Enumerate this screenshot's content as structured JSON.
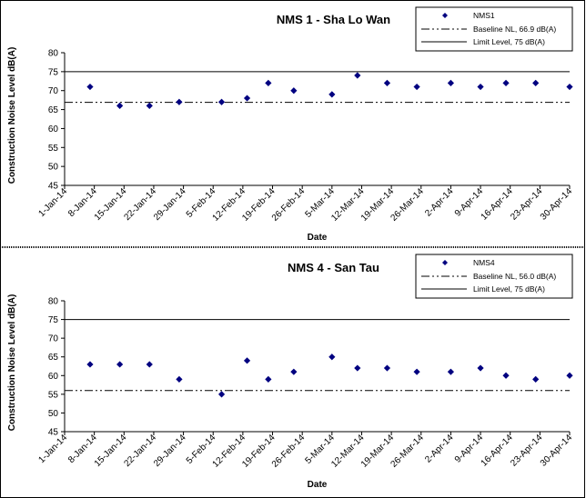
{
  "chart_data": [
    {
      "type": "scatter",
      "title": "NMS 1 - Sha Lo Wan",
      "xlabel": "Date",
      "ylabel": "Construction Noise Level  dB(A)",
      "ylim": [
        45,
        80
      ],
      "yticks": [
        "45",
        "50",
        "55",
        "60",
        "65",
        "70",
        "75",
        "80"
      ],
      "xtick_labels": [
        "1-Jan-14",
        "8-Jan-14",
        "15-Jan-14",
        "22-Jan-14",
        "29-Jan-14",
        "5-Feb-14",
        "12-Feb-14",
        "19-Feb-14",
        "26-Feb-14",
        "5-Mar-14",
        "12-Mar-14",
        "19-Mar-14",
        "26-Mar-14",
        "2-Apr-14",
        "9-Apr-14",
        "16-Apr-14",
        "23-Apr-14",
        "30-Apr-14"
      ],
      "x_range": [
        "2014-01-01",
        "2014-04-30"
      ],
      "grid": false,
      "legend_position": "top-right",
      "series": [
        {
          "name": "NMS1",
          "color": "#000080",
          "marker": "diamond",
          "x": [
            "2014-01-07",
            "2014-01-14",
            "2014-01-21",
            "2014-01-28",
            "2014-02-07",
            "2014-02-13",
            "2014-02-18",
            "2014-02-24",
            "2014-03-05",
            "2014-03-11",
            "2014-03-18",
            "2014-03-25",
            "2014-04-02",
            "2014-04-09",
            "2014-04-15",
            "2014-04-22",
            "2014-04-30"
          ],
          "y": [
            71,
            66,
            66,
            67,
            67,
            68,
            72,
            70,
            69,
            74,
            72,
            71,
            72,
            71,
            72,
            72,
            71
          ]
        }
      ],
      "reference_lines": [
        {
          "name": "Baseline NL, 66.9 dB(A)",
          "y": 66.9,
          "style": "dash-dot-dot"
        },
        {
          "name": "Limit Level, 75 dB(A)",
          "y": 75,
          "style": "solid"
        }
      ]
    },
    {
      "type": "scatter",
      "title": "NMS 4 - San Tau",
      "xlabel": "Date",
      "ylabel": "Construction Noise Level  dB(A)",
      "ylim": [
        45,
        80
      ],
      "yticks": [
        "45",
        "50",
        "55",
        "60",
        "65",
        "70",
        "75",
        "80"
      ],
      "xtick_labels": [
        "1-Jan-14",
        "8-Jan-14",
        "15-Jan-14",
        "22-Jan-14",
        "29-Jan-14",
        "5-Feb-14",
        "12-Feb-14",
        "19-Feb-14",
        "26-Feb-14",
        "5-Mar-14",
        "12-Mar-14",
        "19-Mar-14",
        "26-Mar-14",
        "2-Apr-14",
        "9-Apr-14",
        "16-Apr-14",
        "23-Apr-14",
        "30-Apr-14"
      ],
      "x_range": [
        "2014-01-01",
        "2014-04-30"
      ],
      "grid": false,
      "legend_position": "top-right",
      "series": [
        {
          "name": "NMS4",
          "color": "#000080",
          "marker": "diamond",
          "x": [
            "2014-01-07",
            "2014-01-14",
            "2014-01-21",
            "2014-01-28",
            "2014-02-07",
            "2014-02-13",
            "2014-02-18",
            "2014-02-24",
            "2014-03-05",
            "2014-03-11",
            "2014-03-18",
            "2014-03-25",
            "2014-04-02",
            "2014-04-09",
            "2014-04-15",
            "2014-04-22",
            "2014-04-30"
          ],
          "y": [
            63,
            63,
            63,
            59,
            55,
            64,
            59,
            61,
            65,
            62,
            62,
            61,
            61,
            62,
            60,
            59,
            60
          ]
        }
      ],
      "reference_lines": [
        {
          "name": "Baseline NL, 56.0 dB(A)",
          "y": 56.0,
          "style": "dash-dot-dot"
        },
        {
          "name": "Limit Level, 75 dB(A)",
          "y": 75,
          "style": "solid"
        }
      ]
    }
  ],
  "legend_labels": [
    {
      "marker": "NMS1",
      "baseline": "Baseline NL, 66.9 dB(A)",
      "limit": "Limit Level, 75 dB(A)"
    },
    {
      "marker": "NMS4",
      "baseline": "Baseline NL, 56.0 dB(A)",
      "limit": "Limit Level, 75 dB(A)"
    }
  ]
}
